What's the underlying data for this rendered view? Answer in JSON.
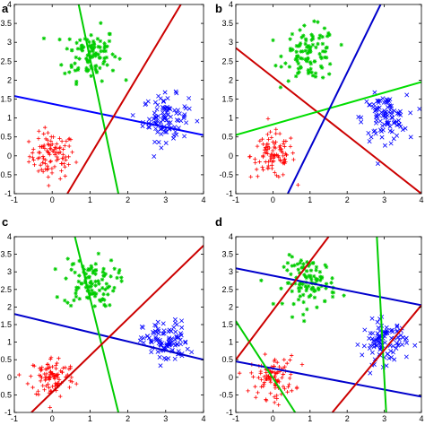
{
  "figure": {
    "panel_letters": [
      "a",
      "b",
      "c",
      "d"
    ]
  },
  "chart_data": [
    {
      "type": "scatter",
      "panel": "a",
      "xlim": [
        -1,
        4
      ],
      "ylim": [
        -1,
        4
      ],
      "xticks": [
        "-1",
        "0",
        "1",
        "2",
        "3",
        "4"
      ],
      "yticks": [
        "-1",
        "-0.5",
        "0",
        "0.5",
        "1",
        "1.5",
        "2",
        "2.5",
        "3",
        "3.5",
        "4"
      ],
      "clusters": [
        {
          "marker": "+",
          "color": "#ff0000",
          "center": [
            0,
            0
          ],
          "spread": 0.3,
          "count": 100
        },
        {
          "marker": "*",
          "color": "#00cc00",
          "center": [
            1,
            2.7
          ],
          "spread": 0.35,
          "count": 100
        },
        {
          "marker": "x",
          "color": "#0000ff",
          "center": [
            3,
            1
          ],
          "spread": 0.3,
          "count": 100
        }
      ],
      "lines": [
        {
          "color": "#0000ff",
          "p1": [
            -1,
            1.58
          ],
          "p2": [
            4,
            0.55
          ]
        },
        {
          "color": "#00cc00",
          "p1": [
            0.7,
            4
          ],
          "p2": [
            1.75,
            -1
          ]
        },
        {
          "color": "#cc0000",
          "p1": [
            0.4,
            -1
          ],
          "p2": [
            3.4,
            4
          ]
        }
      ]
    },
    {
      "type": "scatter",
      "panel": "b",
      "xlim": [
        -1,
        4
      ],
      "ylim": [
        -1,
        4
      ],
      "xticks": [
        "-1",
        "0",
        "1",
        "2",
        "3",
        "4"
      ],
      "yticks": [
        "-1",
        "-0.5",
        "0",
        "0.5",
        "1",
        "1.5",
        "2",
        "2.5",
        "3",
        "3.5",
        "4"
      ],
      "clusters": [
        {
          "marker": "+",
          "color": "#ff0000",
          "center": [
            0,
            0
          ],
          "spread": 0.3,
          "count": 100
        },
        {
          "marker": "*",
          "color": "#00cc00",
          "center": [
            1,
            2.7
          ],
          "spread": 0.35,
          "count": 100
        },
        {
          "marker": "x",
          "color": "#0000ff",
          "center": [
            3,
            1
          ],
          "spread": 0.3,
          "count": 100
        }
      ],
      "lines": [
        {
          "color": "#cc0000",
          "p1": [
            -1,
            2.85
          ],
          "p2": [
            4,
            -1
          ]
        },
        {
          "color": "#00dd00",
          "p1": [
            -1,
            0.55
          ],
          "p2": [
            4,
            1.95
          ]
        },
        {
          "color": "#0000cc",
          "p1": [
            0.4,
            -1
          ],
          "p2": [
            2.9,
            4
          ]
        }
      ]
    },
    {
      "type": "scatter",
      "panel": "c",
      "xlim": [
        -1,
        4
      ],
      "ylim": [
        -1,
        4
      ],
      "xticks": [
        "-1",
        "0",
        "1",
        "2",
        "3",
        "4"
      ],
      "yticks": [
        "-1",
        "-0.5",
        "0",
        "0.5",
        "1",
        "1.5",
        "2",
        "2.5",
        "3",
        "3.5",
        "4"
      ],
      "clusters": [
        {
          "marker": "+",
          "color": "#ff0000",
          "center": [
            0,
            0
          ],
          "spread": 0.3,
          "count": 100
        },
        {
          "marker": "*",
          "color": "#00cc00",
          "center": [
            1,
            2.7
          ],
          "spread": 0.35,
          "count": 100
        },
        {
          "marker": "x",
          "color": "#0000ff",
          "center": [
            3,
            1
          ],
          "spread": 0.3,
          "count": 100
        }
      ],
      "lines": [
        {
          "color": "#0000cc",
          "p1": [
            -1,
            1.8
          ],
          "p2": [
            4,
            0.5
          ]
        },
        {
          "color": "#00cc00",
          "p1": [
            0.6,
            4
          ],
          "p2": [
            1.75,
            -1
          ]
        },
        {
          "color": "#cc0000",
          "p1": [
            -0.55,
            -1
          ],
          "p2": [
            4,
            3.75
          ]
        }
      ]
    },
    {
      "type": "scatter",
      "panel": "d",
      "xlim": [
        -1,
        4
      ],
      "ylim": [
        -1,
        4
      ],
      "xticks": [
        "-1",
        "0",
        "1",
        "2",
        "3",
        "4"
      ],
      "yticks": [
        "-1",
        "-0.5",
        "0",
        "0.5",
        "1",
        "1.5",
        "2",
        "2.5",
        "3",
        "3.5",
        "4"
      ],
      "clusters": [
        {
          "marker": "+",
          "color": "#ff0000",
          "center": [
            0,
            0
          ],
          "spread": 0.3,
          "count": 100
        },
        {
          "marker": "*",
          "color": "#00cc00",
          "center": [
            1,
            2.7
          ],
          "spread": 0.35,
          "count": 100
        },
        {
          "marker": "x",
          "color": "#0000ff",
          "center": [
            3,
            1
          ],
          "spread": 0.3,
          "count": 100
        }
      ],
      "lines": [
        {
          "color": "#0000cc",
          "p1": [
            -1,
            3.1
          ],
          "p2": [
            4,
            2.05
          ]
        },
        {
          "color": "#0000cc",
          "p1": [
            -1,
            0.45
          ],
          "p2": [
            4,
            -0.55
          ]
        },
        {
          "color": "#00cc00",
          "p1": [
            2.8,
            4
          ],
          "p2": [
            3.05,
            -1
          ]
        },
        {
          "color": "#00cc00",
          "p1": [
            -1,
            1.6
          ],
          "p2": [
            0.6,
            -1
          ]
        },
        {
          "color": "#cc0000",
          "p1": [
            -1,
            0.5
          ],
          "p2": [
            1.5,
            4
          ]
        },
        {
          "color": "#cc0000",
          "p1": [
            1.6,
            -1
          ],
          "p2": [
            4,
            2.05
          ]
        }
      ]
    }
  ]
}
